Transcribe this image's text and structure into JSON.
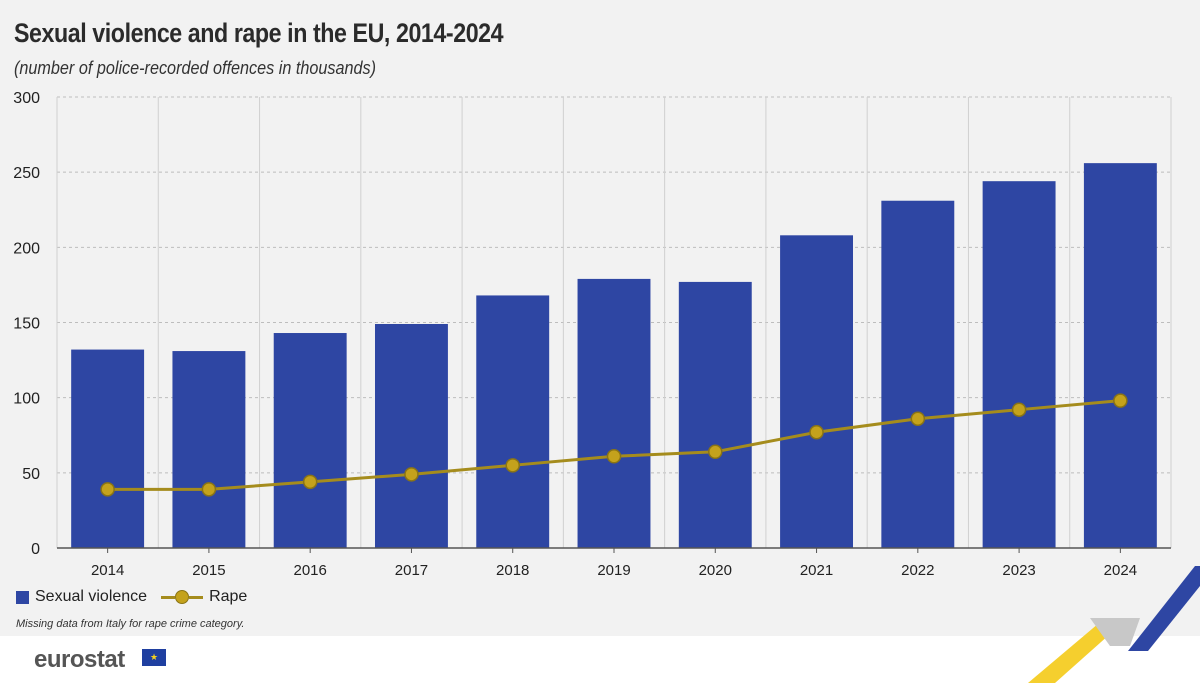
{
  "chart_data": {
    "type": "bar",
    "title": "Sexual violence and rape in the EU, 2014-2024",
    "subtitle": "(number of police-recorded offences in thousands)",
    "categories": [
      "2014",
      "2015",
      "2016",
      "2017",
      "2018",
      "2019",
      "2020",
      "2021",
      "2022",
      "2023",
      "2024"
    ],
    "series": [
      {
        "name": "Sexual violence",
        "type": "bar",
        "color": "#2e46a3",
        "values": [
          132,
          131,
          143,
          149,
          168,
          179,
          177,
          208,
          231,
          244,
          256
        ]
      },
      {
        "name": "Rape",
        "type": "line",
        "color": "#c4a21c",
        "values": [
          39,
          39,
          44,
          49,
          55,
          61,
          64,
          77,
          86,
          92,
          98
        ]
      }
    ],
    "ylim": [
      0,
      300
    ],
    "yticks": [
      0,
      50,
      100,
      150,
      200,
      250,
      300
    ],
    "grid": true,
    "legend": "bottom-left"
  },
  "legend": {
    "bar_label": "Sexual violence",
    "line_label": "Rape"
  },
  "footnote": "Missing data from Italy for rape crime category.",
  "footer": {
    "logo_text": "eurostat",
    "flag_icon": "eu-flag-icon"
  }
}
